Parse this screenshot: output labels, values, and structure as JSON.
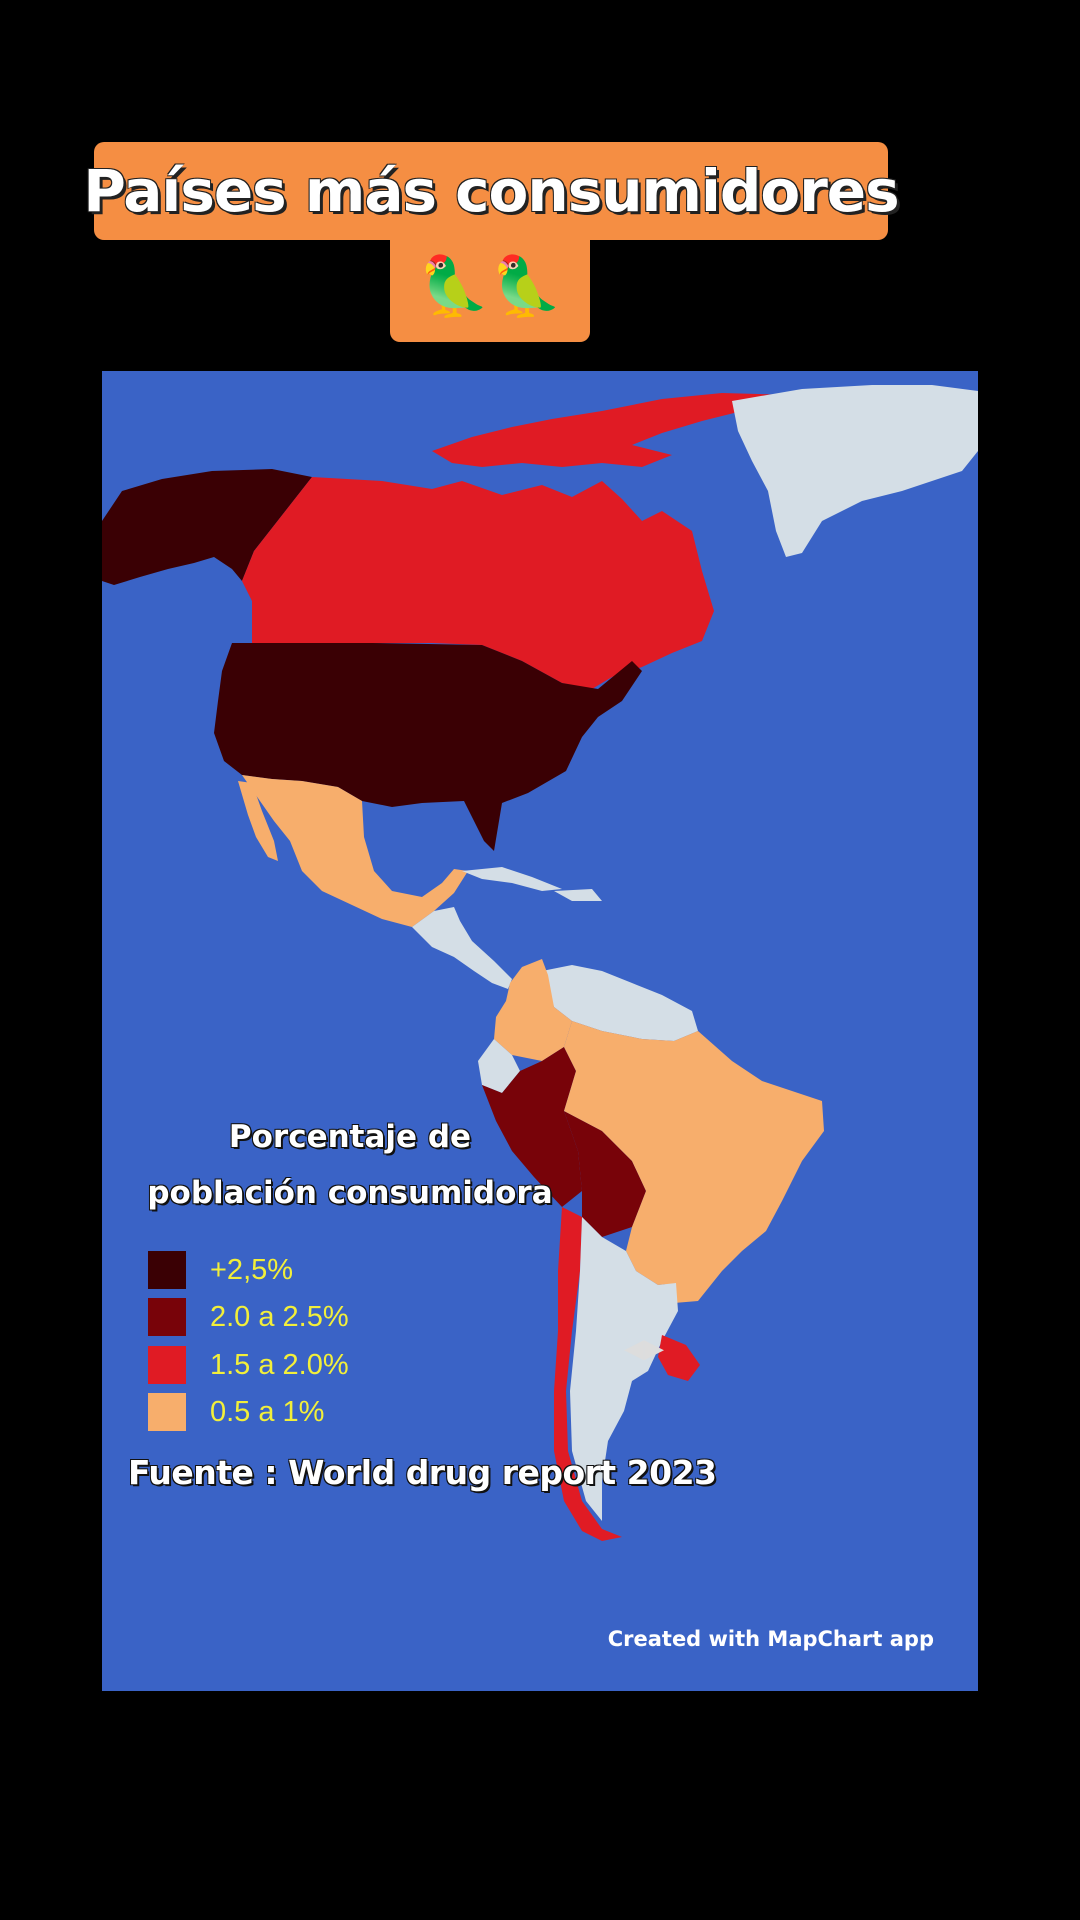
{
  "title": {
    "line1": "Países más consumidores",
    "emoji": "🦜🦜"
  },
  "legend": {
    "title_line1": "Porcentaje de",
    "title_line2": "población consumidora",
    "items": [
      {
        "label": "+2,5%",
        "color": "#3a0004"
      },
      {
        "label": "2.0 a 2.5%",
        "color": "#780309"
      },
      {
        "label": "1.5 a 2.0%",
        "color": "#e01b24"
      },
      {
        "label": "0.5 a 1%",
        "color": "#f7ae6c"
      }
    ]
  },
  "colors": {
    "ocean": "#3a63c6",
    "no_data": "#d4dee6",
    "title_bg": "#f58e43"
  },
  "source": "Fuente : World drug report 2023",
  "credit": "Created with MapChart app",
  "regions": [
    {
      "name": "Alaska",
      "category": 0
    },
    {
      "name": "Canadá",
      "category": 2
    },
    {
      "name": "Groenlandia",
      "category": -1
    },
    {
      "name": "Estados Unidos",
      "category": 0
    },
    {
      "name": "México",
      "category": 3
    },
    {
      "name": "Centroamérica",
      "category": -1
    },
    {
      "name": "Colombia",
      "category": 3
    },
    {
      "name": "Venezuela y Guayanas",
      "category": -1
    },
    {
      "name": "Ecuador",
      "category": 1
    },
    {
      "name": "Perú",
      "category": 3
    },
    {
      "name": "Bolivia",
      "category": 3
    },
    {
      "name": "Brasil",
      "category": 2
    },
    {
      "name": "Paraguay",
      "category": -1
    },
    {
      "name": "Chile",
      "category": 2
    },
    {
      "name": "Argentina",
      "category": 1
    },
    {
      "name": "Uruguay",
      "category": 0
    }
  ]
}
